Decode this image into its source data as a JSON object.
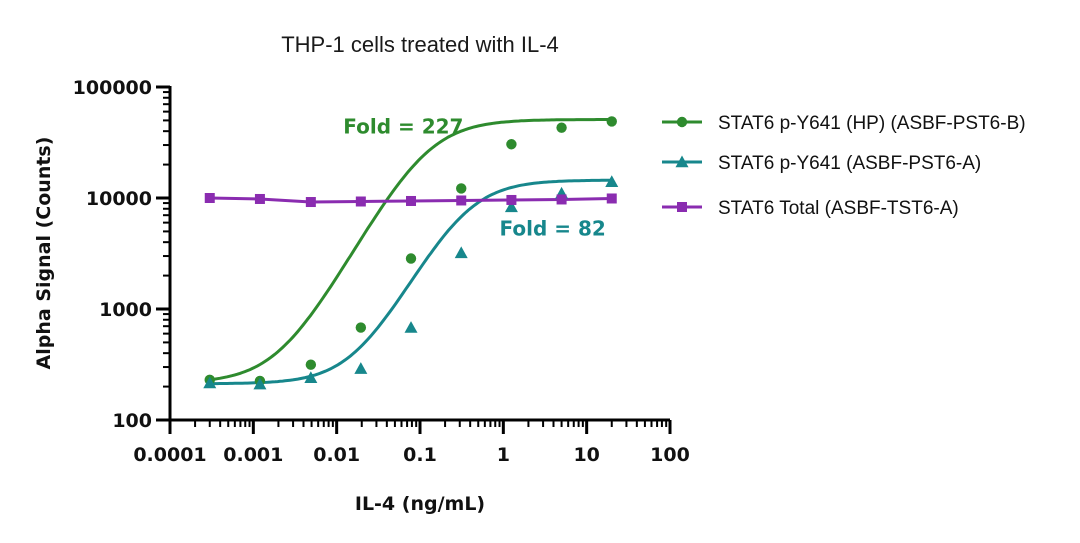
{
  "chart_data": {
    "type": "scatter",
    "title": "THP-1 cells treated with IL-4",
    "xlabel": "IL-4 (ng/mL)",
    "ylabel": "Alpha Signal (Counts)",
    "xscale": "log",
    "yscale": "log",
    "xlim": [
      0.0001,
      100
    ],
    "ylim": [
      100,
      100000
    ],
    "xticks": [
      "0.0001",
      "0.001",
      "0.01",
      "0.1",
      "1",
      "10",
      "100"
    ],
    "yticks": [
      "100",
      "1000",
      "10000",
      "100000"
    ],
    "grid": false,
    "legend_position": "right",
    "series": [
      {
        "name": "STAT6 p-Y641 (HP) (ASBF-PST6-B)",
        "color": "#2e8b2e",
        "marker": "circle",
        "x": [
          0.0003,
          0.0012,
          0.0049,
          0.0195,
          0.078,
          0.3125,
          1.25,
          5,
          20
        ],
        "y": [
          230,
          225,
          315,
          680,
          2850,
          12200,
          30500,
          43000,
          49000
        ],
        "fit": {
          "bottom": 215,
          "top": 51000,
          "ec50": 0.12,
          "hill": 1.35
        }
      },
      {
        "name": "STAT6 p-Y641 (ASBF-PST6-A)",
        "color": "#17878c",
        "marker": "triangle",
        "x": [
          0.0003,
          0.0012,
          0.0049,
          0.0195,
          0.078,
          0.3125,
          1.25,
          5,
          20
        ],
        "y": [
          215,
          210,
          240,
          290,
          680,
          3200,
          8300,
          11000,
          14000
        ],
        "fit": {
          "bottom": 212,
          "top": 14500,
          "ec50": 0.35,
          "hill": 1.4
        }
      },
      {
        "name": "STAT6 Total (ASBF-TST6-A)",
        "color": "#8a2cb0",
        "marker": "square",
        "x": [
          0.0003,
          0.0012,
          0.0049,
          0.0195,
          0.078,
          0.3125,
          1.25,
          5,
          20
        ],
        "y": [
          10000,
          9800,
          9200,
          9300,
          9400,
          9500,
          9600,
          9700,
          9900
        ]
      }
    ],
    "annotations": [
      {
        "text": "Fold = 227",
        "color": "#2e8b2e",
        "x": 0.012,
        "y": 38000
      },
      {
        "text": "Fold = 82",
        "color": "#17878c",
        "x": 0.9,
        "y": 4600
      }
    ]
  }
}
